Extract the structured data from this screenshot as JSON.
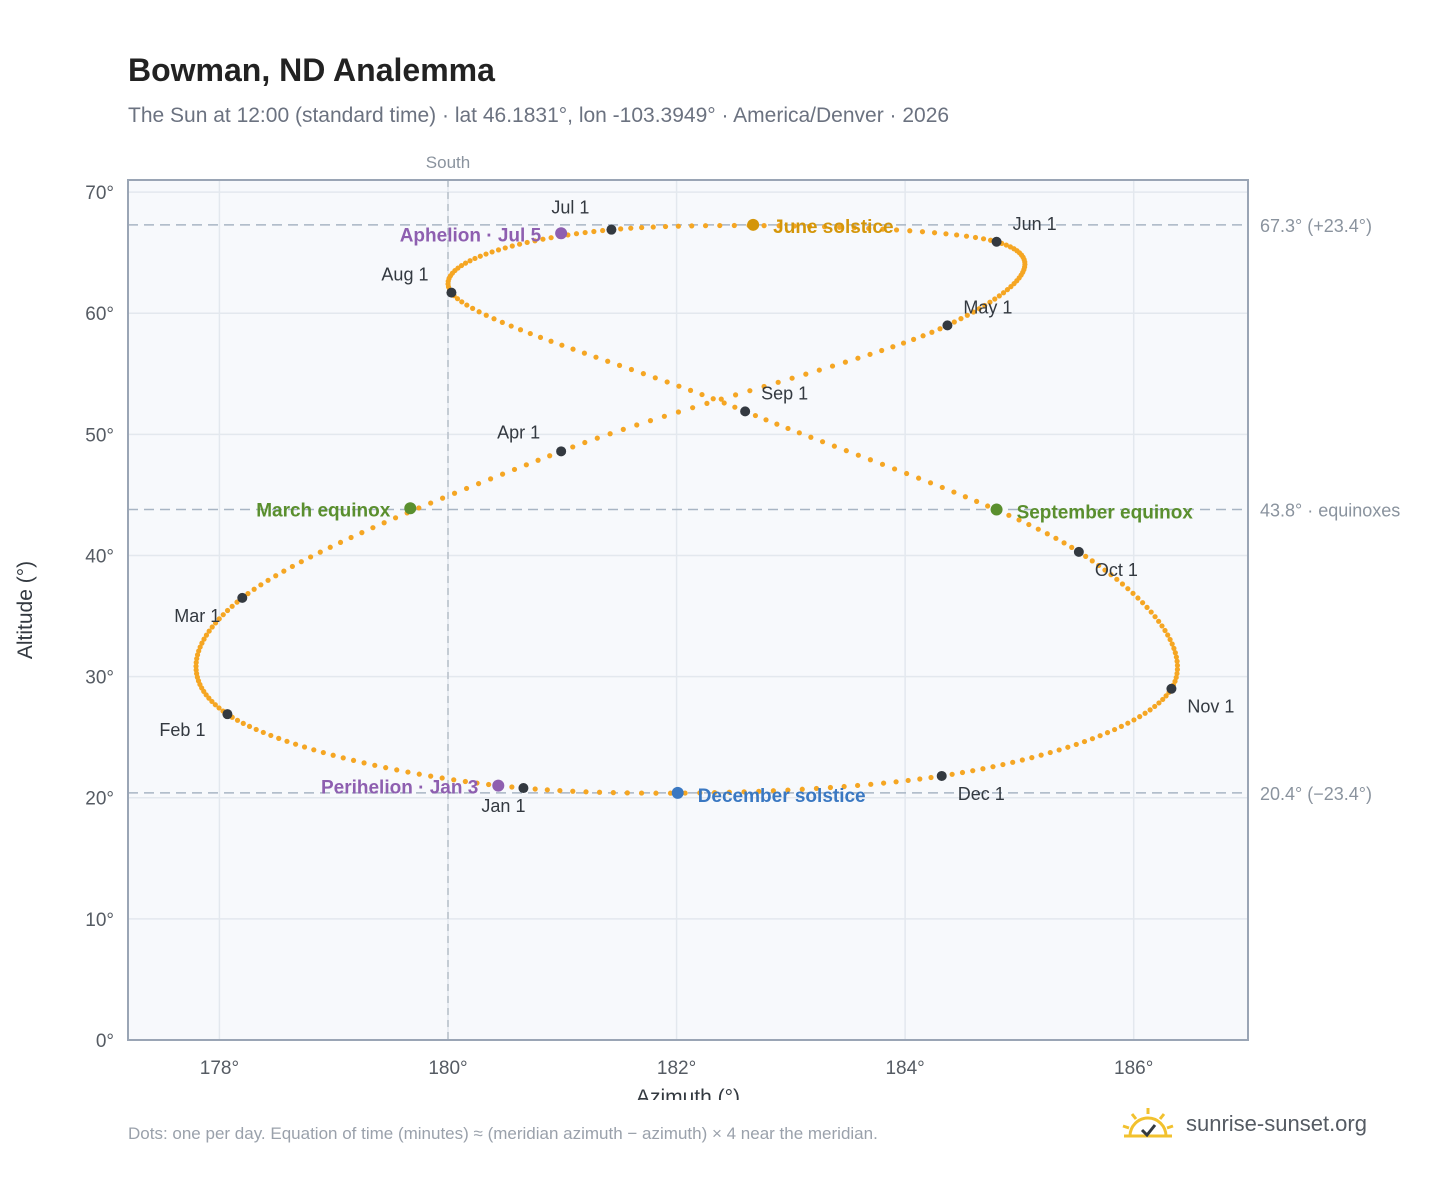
{
  "header": {
    "title": "Bowman, ND Analemma",
    "subtitle": "The Sun at 12:00 (standard time) · lat 46.1831°, lon -103.3949° · America/Denver · 2026"
  },
  "footer": {
    "note": "Dots: one per day. Equation of time (minutes) ≈ (meridian azimuth − azimuth) × 4 near the meridian.",
    "brand": "sunrise-sunset.org",
    "logo_icon": "sun-logo-icon"
  },
  "colors": {
    "path": "#f5a623",
    "month_dot": "#333940",
    "solstice_june": "#d4960a",
    "solstice_december": "#3a78c2",
    "equinox": "#5a8f2e",
    "apsis": "#8e5fb0",
    "plot_bg": "#f7f9fc",
    "grid": "#e3e8ee",
    "frame": "#9aa5b5",
    "refline": "#a8b5c4"
  },
  "chart_data": {
    "type": "scatter",
    "xlabel": "Azimuth (°)",
    "ylabel": "Altitude (°)",
    "xlim": [
      177.2,
      187.0
    ],
    "ylim": [
      0,
      71
    ],
    "x_ticks": [
      178,
      180,
      182,
      184,
      186
    ],
    "x_tick_labels": [
      "178°",
      "180°",
      "182°",
      "184°",
      "186°"
    ],
    "y_ticks": [
      0,
      10,
      20,
      30,
      40,
      50,
      60,
      70
    ],
    "y_tick_labels": [
      "0°",
      "10°",
      "20°",
      "30°",
      "40°",
      "50°",
      "60°",
      "70°"
    ],
    "grid": true,
    "south_line": {
      "x": 180,
      "label": "South"
    },
    "ref_lines": [
      {
        "y": 67.3,
        "label": "67.3° (+23.4°)"
      },
      {
        "y": 43.8,
        "label": "43.8° · equinoxes"
      },
      {
        "y": 20.4,
        "label": "20.4° (−23.4°)"
      }
    ],
    "month_points": [
      {
        "label": "Jan 1",
        "az": 180.66,
        "alt": 20.8
      },
      {
        "label": "Feb 1",
        "az": 178.07,
        "alt": 26.9
      },
      {
        "label": "Mar 1",
        "az": 178.2,
        "alt": 36.5
      },
      {
        "label": "Apr 1",
        "az": 180.99,
        "alt": 48.6
      },
      {
        "label": "May 1",
        "az": 184.37,
        "alt": 59.0
      },
      {
        "label": "Jun 1",
        "az": 184.8,
        "alt": 65.9
      },
      {
        "label": "Jul 1",
        "az": 181.43,
        "alt": 66.9
      },
      {
        "label": "Aug 1",
        "az": 180.03,
        "alt": 61.7
      },
      {
        "label": "Sep 1",
        "az": 182.6,
        "alt": 51.9
      },
      {
        "label": "Oct 1",
        "az": 185.52,
        "alt": 40.3
      },
      {
        "label": "Nov 1",
        "az": 186.33,
        "alt": 29.0
      },
      {
        "label": "Dec 1",
        "az": 184.32,
        "alt": 21.8
      }
    ],
    "events": [
      {
        "kind": "solstice_june",
        "label": "June solstice",
        "az": 182.67,
        "alt": 67.3
      },
      {
        "kind": "solstice_december",
        "label": "December solstice",
        "az": 182.01,
        "alt": 20.4
      },
      {
        "kind": "equinox",
        "label": "March equinox",
        "az": 179.67,
        "alt": 43.9
      },
      {
        "kind": "equinox",
        "label": "September equinox",
        "az": 184.8,
        "alt": 43.8
      },
      {
        "kind": "apsis",
        "label": "Aphelion · Jul 5",
        "az": 180.99,
        "alt": 66.6
      },
      {
        "kind": "apsis",
        "label": "Perihelion · Jan 3",
        "az": 180.44,
        "alt": 21.0
      }
    ],
    "daily_path_note": "365 daily positions along the figure-eight"
  }
}
